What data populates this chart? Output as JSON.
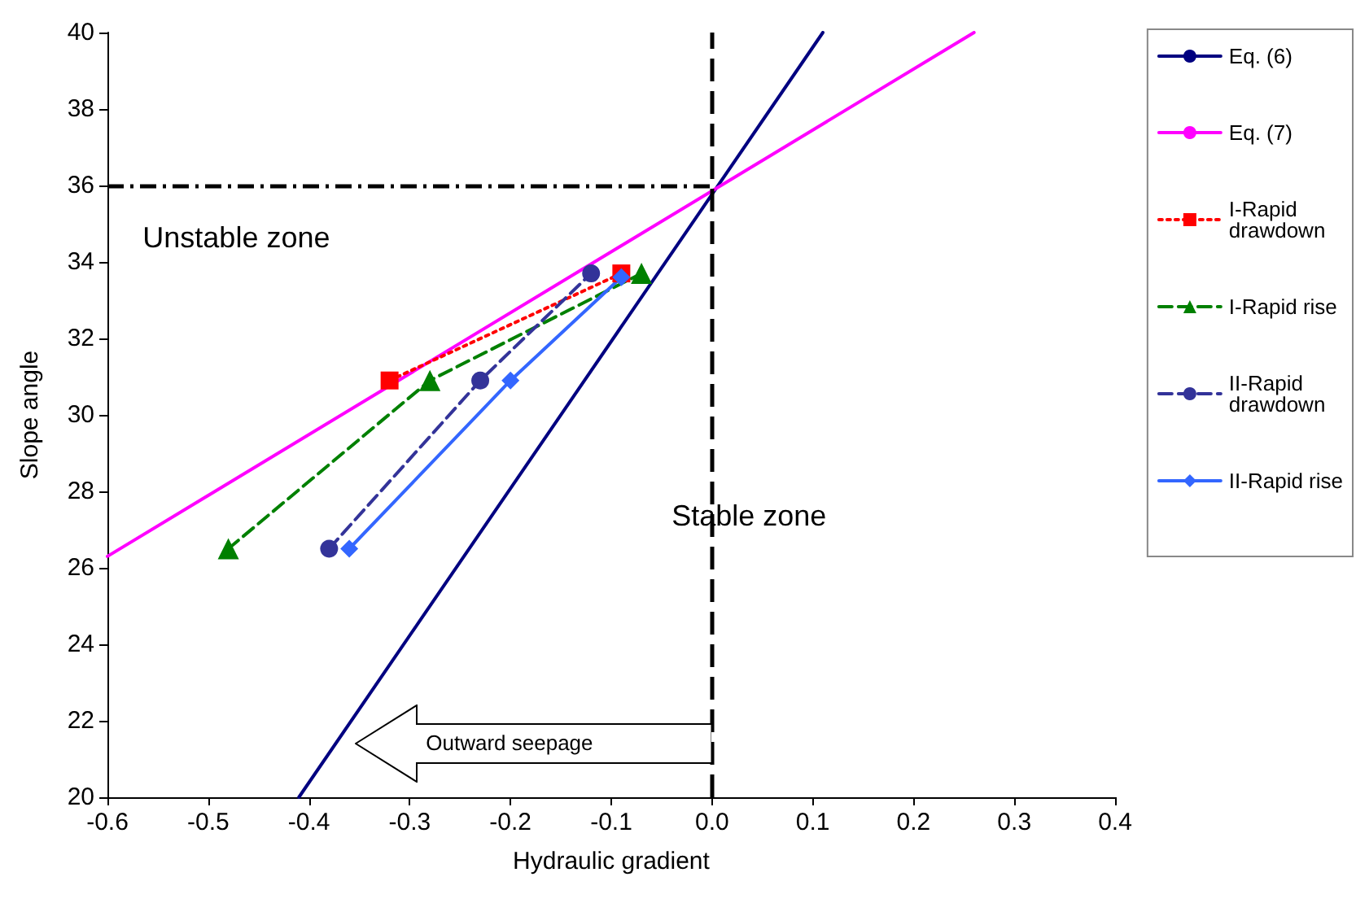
{
  "chart_data": {
    "type": "line",
    "xlabel": "Hydraulic gradient",
    "ylabel": "Slope angle",
    "xlim": [
      -0.6,
      0.4
    ],
    "xticks": [
      {
        "value": -0.6,
        "label": "-0.6"
      },
      {
        "value": -0.5,
        "label": "-0.5"
      },
      {
        "value": -0.4,
        "label": "-0.4"
      },
      {
        "value": -0.3,
        "label": "-0.3"
      },
      {
        "value": -0.2,
        "label": "-0.2"
      },
      {
        "value": -0.1,
        "label": "-0.1"
      },
      {
        "value": 0,
        "label": "0.0"
      },
      {
        "value": 0.1,
        "label": "0.1"
      },
      {
        "value": 0.2,
        "label": "0.2"
      },
      {
        "value": 0.3,
        "label": "0.3"
      },
      {
        "value": 0.4,
        "label": "0.4"
      }
    ],
    "ylim": [
      20,
      40
    ],
    "yticks": [
      20,
      22,
      24,
      26,
      28,
      30,
      32,
      34,
      36,
      38,
      40
    ],
    "grid": false,
    "legend": "right",
    "series": [
      {
        "name": "Eq. (6)",
        "color": "#000080",
        "x": [
          -0.41,
          0.11
        ],
        "values": [
          20,
          40
        ],
        "marker": "none",
        "line_style": "solid"
      },
      {
        "name": "Eq. (7)",
        "color": "#ff00ff",
        "x": [
          -0.6,
          0.26
        ],
        "values": [
          26.3,
          40
        ],
        "marker": "none",
        "line_style": "solid"
      },
      {
        "name": "I-Rapid drawdown",
        "color": "#ff0000",
        "x": [
          -0.32,
          -0.09
        ],
        "values": [
          30.9,
          33.7
        ],
        "marker": "square",
        "line_style": "dotted"
      },
      {
        "name": "I-Rapid rise",
        "color": "#008000",
        "x": [
          -0.48,
          -0.28,
          -0.07
        ],
        "values": [
          26.5,
          30.9,
          33.7
        ],
        "marker": "triangle",
        "line_style": "dashed"
      },
      {
        "name": "II-Rapid drawdown",
        "color": "#333399",
        "x": [
          -0.38,
          -0.23,
          -0.12
        ],
        "values": [
          26.5,
          30.9,
          33.7
        ],
        "marker": "circle",
        "line_style": "dashed"
      },
      {
        "name": "II-Rapid rise",
        "color": "#3366ff",
        "x": [
          -0.36,
          -0.2,
          -0.09
        ],
        "values": [
          26.5,
          30.9,
          33.6
        ],
        "marker": "diamond",
        "line_style": "solid"
      }
    ],
    "ref_lines": [
      {
        "axis": "x",
        "value": 0,
        "color": "#000000",
        "line_style": "dashed"
      },
      {
        "axis": "y",
        "value": 36,
        "color": "#000000",
        "line_style": "dashed"
      }
    ],
    "annotations": [
      "Unstable zone",
      "Stable zone",
      "Outward seepage"
    ]
  }
}
